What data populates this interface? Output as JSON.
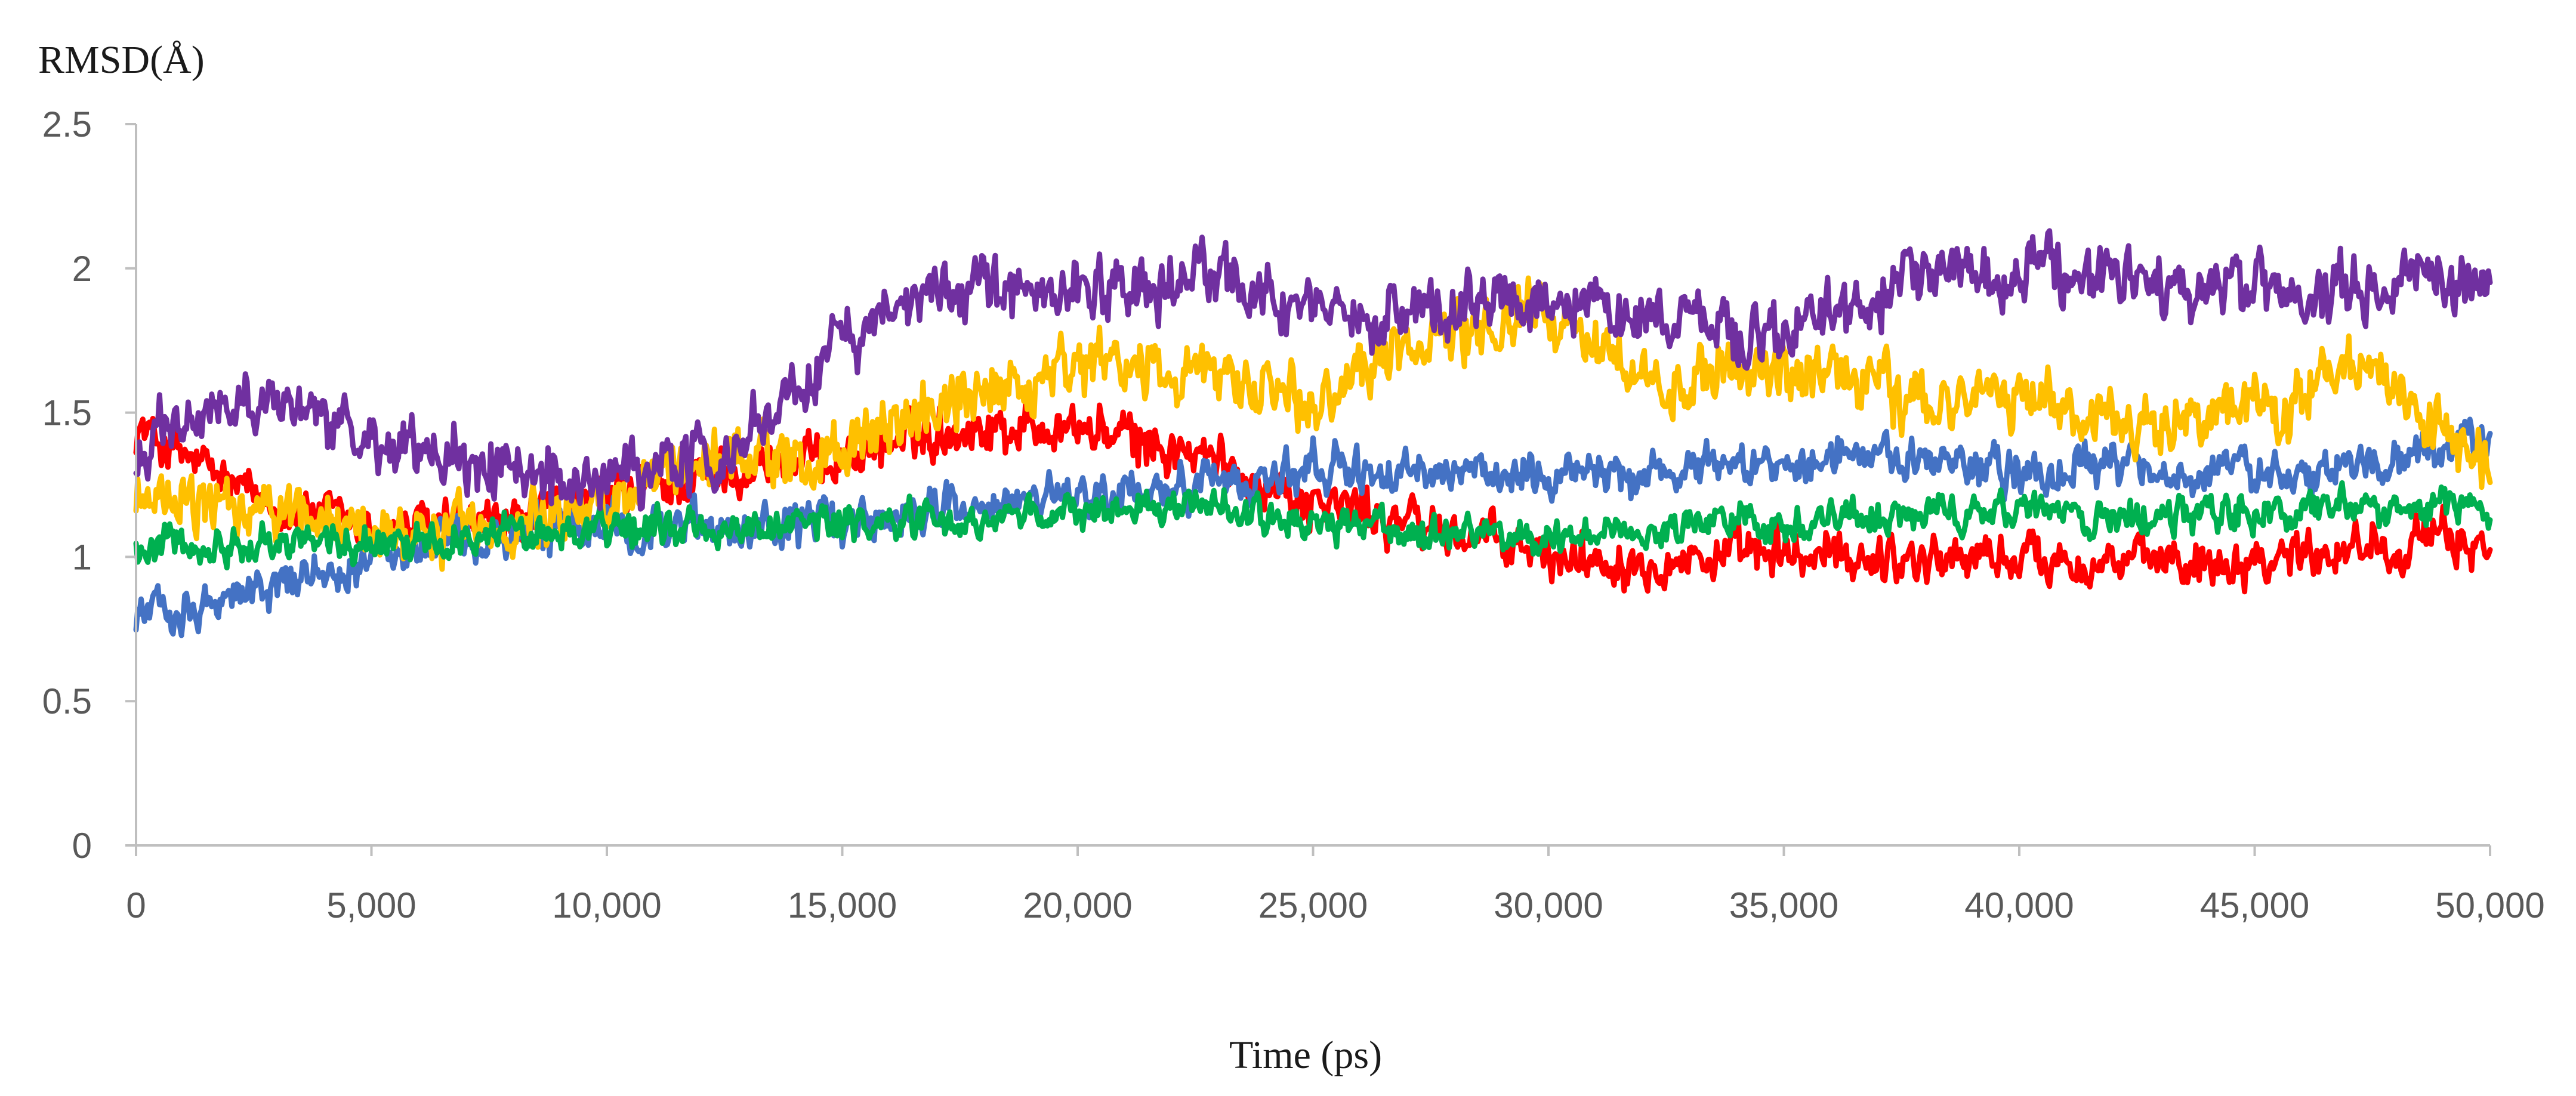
{
  "chart_data": {
    "type": "line",
    "title": "",
    "ylabel": "RMSD(Å)",
    "xlabel": "Time (ps)",
    "xlim": [
      0,
      50000
    ],
    "ylim": [
      0,
      2.5
    ],
    "x_ticks": [
      0,
      5000,
      10000,
      15000,
      20000,
      25000,
      30000,
      35000,
      40000,
      45000,
      50000
    ],
    "x_tick_labels": [
      "0",
      "5,000",
      "10,000",
      "15,000",
      "20,000",
      "25,000",
      "30,000",
      "35,000",
      "40,000",
      "45,000",
      "50,000"
    ],
    "y_ticks": [
      0,
      0.5,
      1,
      1.5,
      2,
      2.5
    ],
    "y_tick_labels": [
      "0",
      "0.5",
      "1",
      "1.5",
      "2",
      "2.5"
    ],
    "grid": false,
    "legend": "none",
    "x": [
      0,
      2500,
      5000,
      7500,
      10000,
      12500,
      15000,
      17500,
      20000,
      22500,
      25000,
      27500,
      30000,
      32500,
      35000,
      37500,
      40000,
      42500,
      45000,
      47500,
      50000
    ],
    "series": [
      {
        "name": "red",
        "color": "#ff0000",
        "noise": 0.08,
        "values": [
          1.45,
          1.2,
          1.1,
          1.1,
          1.2,
          1.3,
          1.35,
          1.45,
          1.45,
          1.35,
          1.2,
          1.1,
          1.0,
          1.0,
          1.0,
          1.0,
          1.0,
          0.98,
          1.0,
          1.05,
          1.05
        ]
      },
      {
        "name": "blue",
        "color": "#4472c4",
        "noise": 0.07,
        "values": [
          0.8,
          0.88,
          1.0,
          1.05,
          1.1,
          1.1,
          1.12,
          1.18,
          1.2,
          1.25,
          1.3,
          1.28,
          1.3,
          1.3,
          1.35,
          1.35,
          1.3,
          1.3,
          1.3,
          1.32,
          1.4
        ]
      },
      {
        "name": "gold",
        "color": "#ffc000",
        "noise": 0.1,
        "values": [
          1.2,
          1.15,
          1.1,
          1.1,
          1.2,
          1.35,
          1.35,
          1.55,
          1.65,
          1.65,
          1.55,
          1.75,
          1.85,
          1.6,
          1.65,
          1.55,
          1.55,
          1.45,
          1.5,
          1.65,
          1.3
        ]
      },
      {
        "name": "green",
        "color": "#00b050",
        "noise": 0.06,
        "values": [
          1.05,
          1.05,
          1.05,
          1.08,
          1.1,
          1.1,
          1.12,
          1.12,
          1.15,
          1.18,
          1.12,
          1.1,
          1.08,
          1.1,
          1.12,
          1.15,
          1.15,
          1.13,
          1.15,
          1.18,
          1.17
        ]
      },
      {
        "name": "purple",
        "color": "#7030a0",
        "noise": 0.1,
        "values": [
          1.35,
          1.55,
          1.4,
          1.3,
          1.25,
          1.35,
          1.75,
          1.95,
          1.9,
          2.0,
          1.85,
          1.85,
          1.9,
          1.8,
          1.75,
          1.95,
          2.0,
          1.95,
          1.9,
          1.95,
          1.95
        ]
      }
    ]
  }
}
